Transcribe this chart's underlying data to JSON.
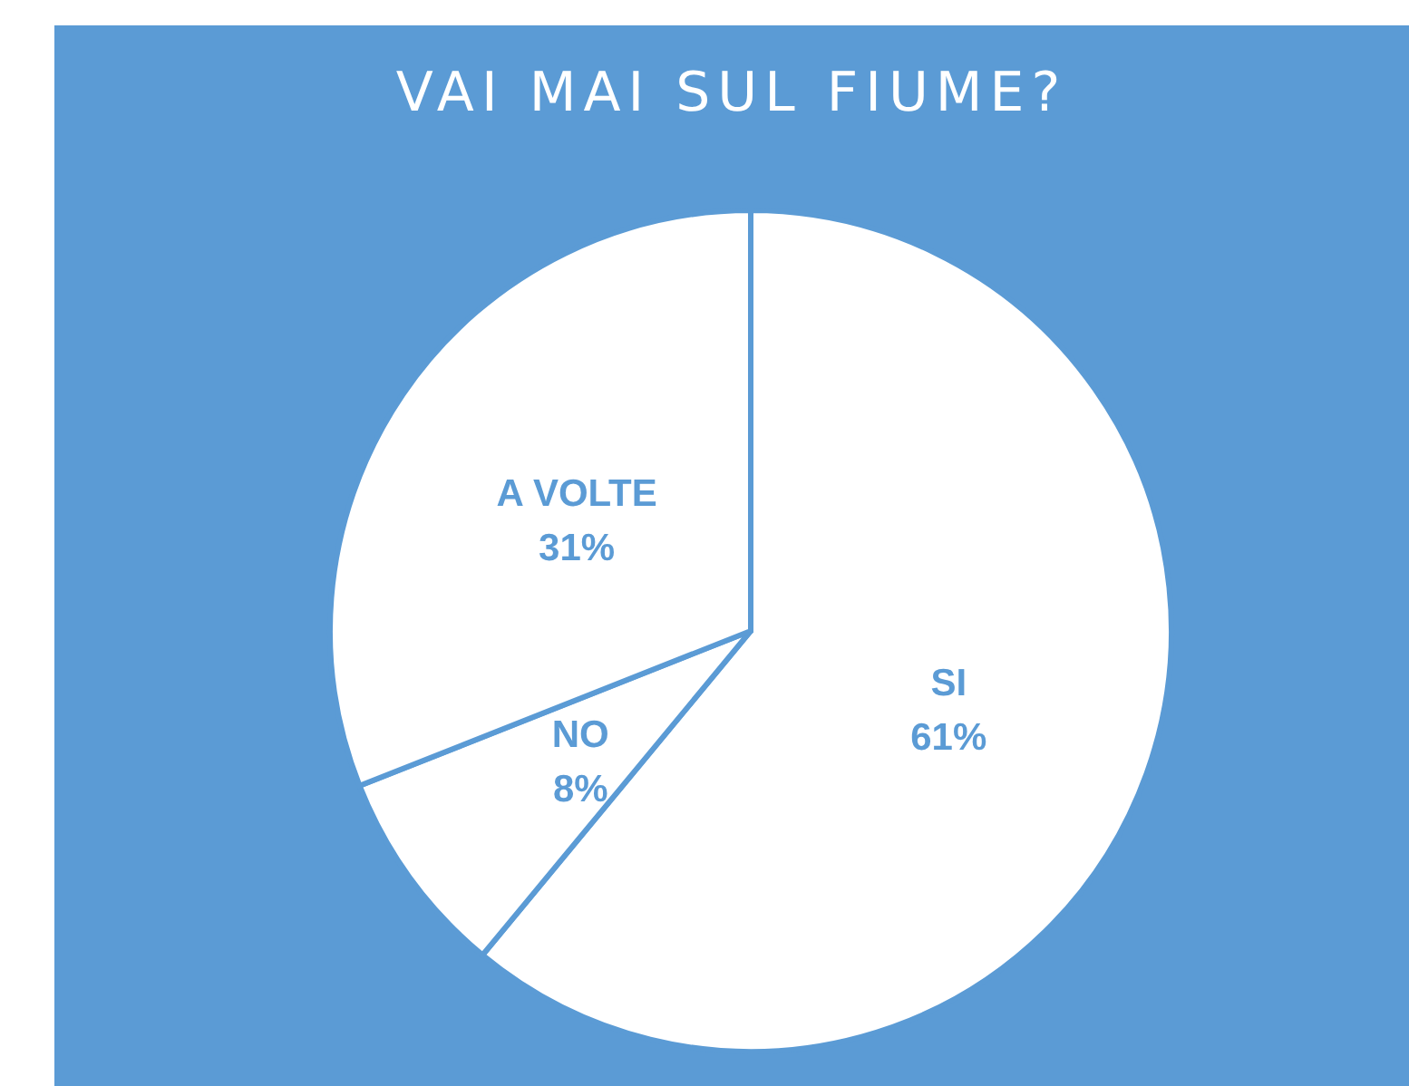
{
  "chart_data": {
    "type": "pie",
    "title": "VAI MAI SUL FIUME?",
    "categories": [
      "SI",
      "NO",
      "A VOLTE"
    ],
    "values": [
      61,
      8,
      31
    ],
    "value_labels": [
      "61%",
      "8%",
      "31%"
    ],
    "colors": [
      "#ffffff",
      "#ffffff",
      "#ffffff"
    ],
    "legend": false
  }
}
